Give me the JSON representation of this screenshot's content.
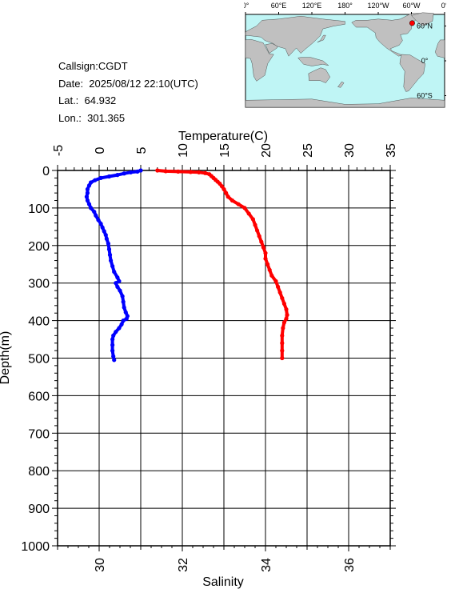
{
  "info": {
    "callsign": "Callsign:CGDT",
    "date": "Date:  2025/08/12 22:10(UTC)",
    "lat": "Lat.:  64.932",
    "lon": "Lon.:  301.365"
  },
  "map": {
    "top_labels": [
      "0°",
      "60°E",
      "120°E",
      "180°",
      "120°W",
      "60°W",
      "0°"
    ],
    "right_labels": [
      "60°N",
      "0°",
      "60°S"
    ],
    "ocean_color": "#bff5f5",
    "land_color": "#c0c0c0",
    "marker_color": "#ff0000",
    "marker_lat": 64.932,
    "marker_lon": 301.365
  },
  "chart_data": {
    "type": "line",
    "top_axis": {
      "label": "Temperature(C)",
      "range": [
        -5,
        35
      ],
      "ticks": [
        "-5",
        "0",
        "5",
        "10",
        "15",
        "20",
        "25",
        "30",
        "35"
      ]
    },
    "bottom_axis": {
      "label": "Salinity",
      "range": [
        29,
        37
      ],
      "ticks": [
        "30",
        "32",
        "34",
        "36"
      ]
    },
    "y_axis": {
      "label": "Depth(m)",
      "range": [
        0,
        1000
      ],
      "inverted": true,
      "ticks": [
        "0",
        "100",
        "200",
        "300",
        "400",
        "500",
        "600",
        "700",
        "800",
        "900",
        "1000"
      ]
    },
    "grid": true,
    "series": [
      {
        "axis": "temperature",
        "color": "#0000ff",
        "points": [
          [
            5.0,
            0
          ],
          [
            4.6,
            3
          ],
          [
            3.8,
            5
          ],
          [
            3.0,
            8
          ],
          [
            2.2,
            12
          ],
          [
            1.2,
            16
          ],
          [
            0.2,
            20
          ],
          [
            -0.5,
            26
          ],
          [
            -1.0,
            32
          ],
          [
            -1.2,
            40
          ],
          [
            -1.4,
            50
          ],
          [
            -1.4,
            60
          ],
          [
            -1.5,
            70
          ],
          [
            -1.4,
            80
          ],
          [
            -1.2,
            90
          ],
          [
            -1.0,
            100
          ],
          [
            -0.6,
            110
          ],
          [
            -0.4,
            120
          ],
          [
            -0.1,
            132
          ],
          [
            0.2,
            142
          ],
          [
            0.4,
            152
          ],
          [
            0.6,
            162
          ],
          [
            0.8,
            172
          ],
          [
            0.9,
            182
          ],
          [
            1.1,
            195
          ],
          [
            1.2,
            210
          ],
          [
            1.3,
            225
          ],
          [
            1.4,
            240
          ],
          [
            1.6,
            255
          ],
          [
            1.8,
            270
          ],
          [
            2.2,
            285
          ],
          [
            2.4,
            295
          ],
          [
            2.0,
            300
          ],
          [
            2.2,
            310
          ],
          [
            2.5,
            320
          ],
          [
            2.8,
            335
          ],
          [
            2.9,
            350
          ],
          [
            3.0,
            365
          ],
          [
            3.2,
            378
          ],
          [
            3.4,
            388
          ],
          [
            3.3,
            395
          ],
          [
            2.9,
            400
          ],
          [
            2.7,
            410
          ],
          [
            2.4,
            420
          ],
          [
            2.0,
            430
          ],
          [
            1.7,
            440
          ],
          [
            1.6,
            450
          ],
          [
            1.6,
            465
          ],
          [
            1.6,
            480
          ],
          [
            1.7,
            495
          ],
          [
            1.8,
            505
          ]
        ]
      },
      {
        "axis": "salinity",
        "color": "#ff0000",
        "points": [
          [
            31.4,
            0
          ],
          [
            31.6,
            2
          ],
          [
            31.9,
            3
          ],
          [
            32.2,
            4
          ],
          [
            32.4,
            5
          ],
          [
            32.55,
            7
          ],
          [
            32.65,
            10
          ],
          [
            32.7,
            15
          ],
          [
            32.75,
            20
          ],
          [
            32.8,
            25
          ],
          [
            32.85,
            30
          ],
          [
            32.9,
            35
          ],
          [
            32.95,
            42
          ],
          [
            33.0,
            50
          ],
          [
            33.05,
            60
          ],
          [
            33.1,
            70
          ],
          [
            33.2,
            80
          ],
          [
            33.35,
            90
          ],
          [
            33.5,
            100
          ],
          [
            33.6,
            115
          ],
          [
            33.7,
            130
          ],
          [
            33.75,
            145
          ],
          [
            33.8,
            160
          ],
          [
            33.85,
            175
          ],
          [
            33.9,
            190
          ],
          [
            33.95,
            205
          ],
          [
            34.0,
            220
          ],
          [
            34.0,
            235
          ],
          [
            34.05,
            250
          ],
          [
            34.1,
            265
          ],
          [
            34.15,
            280
          ],
          [
            34.25,
            295
          ],
          [
            34.3,
            310
          ],
          [
            34.35,
            325
          ],
          [
            34.4,
            340
          ],
          [
            34.45,
            355
          ],
          [
            34.5,
            370
          ],
          [
            34.52,
            385
          ],
          [
            34.5,
            395
          ],
          [
            34.45,
            405
          ],
          [
            34.42,
            420
          ],
          [
            34.4,
            440
          ],
          [
            34.4,
            460
          ],
          [
            34.4,
            480
          ],
          [
            34.4,
            500
          ]
        ]
      }
    ]
  }
}
